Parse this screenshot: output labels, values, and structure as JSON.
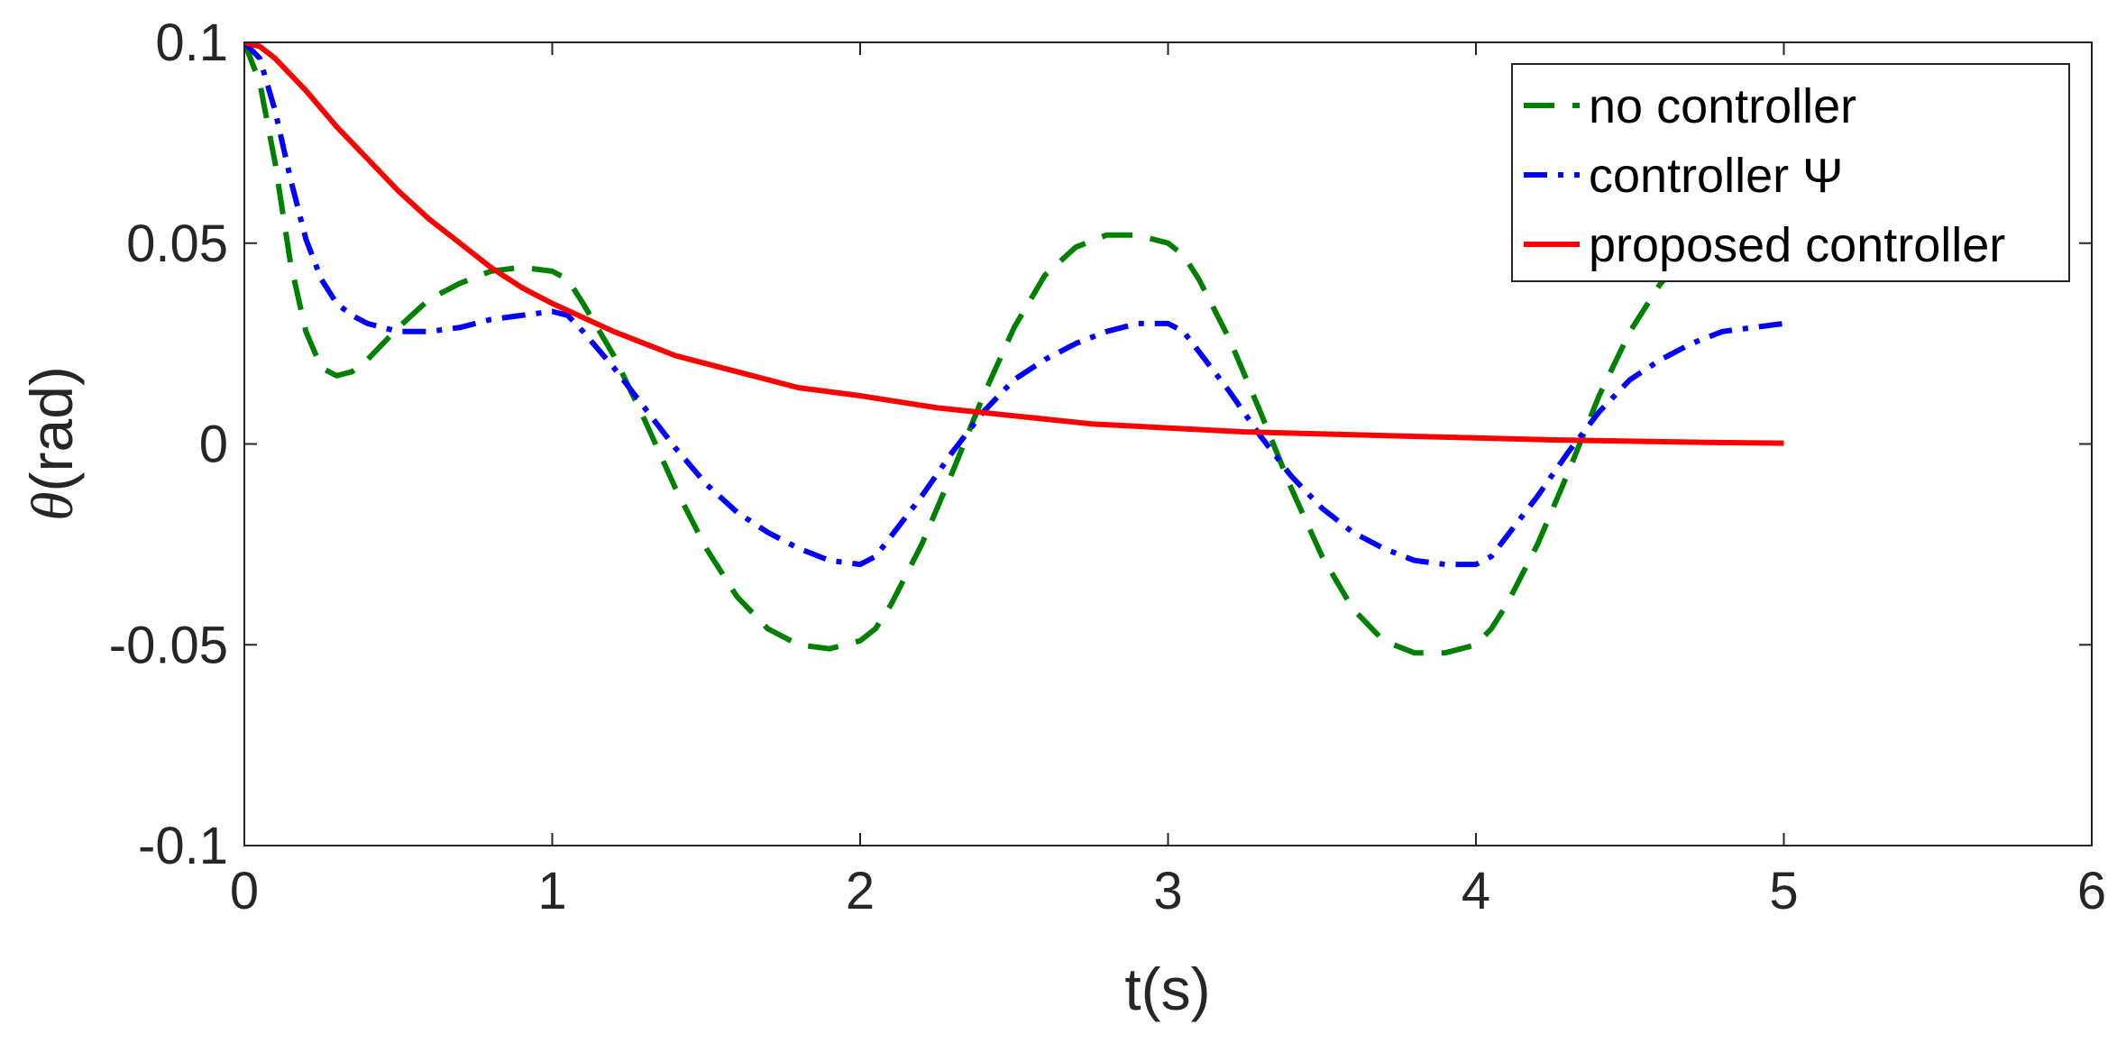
{
  "chart_data": {
    "type": "line",
    "title": "",
    "xlabel": "t(s)",
    "ylabel": {
      "symbol": "θ",
      "unit": "(rad)"
    },
    "xlim": [
      0,
      6
    ],
    "ylim": [
      -0.1,
      0.1
    ],
    "xticks": [
      "0",
      "1",
      "2",
      "3",
      "4",
      "5",
      "6"
    ],
    "yticks": [
      "-0.1",
      "-0.05",
      "0",
      "0.05",
      "0.1"
    ],
    "xtick_values": [
      0,
      1,
      2,
      3,
      4,
      5,
      6
    ],
    "ytick_values": [
      -0.1,
      -0.05,
      0,
      0.05,
      0.1
    ],
    "grid": false,
    "legend_position": "top-right",
    "series": [
      {
        "name": "no controller",
        "color": "#008000",
        "style": "dashed",
        "x": [
          0,
          0.05,
          0.1,
          0.15,
          0.2,
          0.25,
          0.3,
          0.35,
          0.4,
          0.5,
          0.6,
          0.7,
          0.8,
          0.9,
          1.0,
          1.05,
          1.1,
          1.2,
          1.3,
          1.4,
          1.5,
          1.6,
          1.7,
          1.8,
          1.9,
          2.0,
          2.05,
          2.1,
          2.2,
          2.3,
          2.4,
          2.5,
          2.6,
          2.7,
          2.8,
          2.9,
          3.0,
          3.05,
          3.1,
          3.2,
          3.3,
          3.4,
          3.5,
          3.6,
          3.7,
          3.8,
          3.9,
          4.0,
          4.05,
          4.1,
          4.2,
          4.3,
          4.4,
          4.5,
          4.6,
          4.65
        ],
        "y": [
          0.1,
          0.09,
          0.07,
          0.045,
          0.028,
          0.019,
          0.017,
          0.018,
          0.021,
          0.029,
          0.036,
          0.04,
          0.043,
          0.044,
          0.043,
          0.041,
          0.035,
          0.022,
          0.006,
          -0.011,
          -0.026,
          -0.038,
          -0.046,
          -0.05,
          -0.051,
          -0.049,
          -0.046,
          -0.04,
          -0.025,
          -0.007,
          0.012,
          0.029,
          0.042,
          0.049,
          0.052,
          0.052,
          0.05,
          0.047,
          0.041,
          0.026,
          0.008,
          -0.011,
          -0.028,
          -0.041,
          -0.049,
          -0.052,
          -0.052,
          -0.05,
          -0.046,
          -0.04,
          -0.025,
          -0.007,
          0.012,
          0.028,
          0.04,
          0.044
        ]
      },
      {
        "name": "controller Ψ",
        "color": "#0000ff",
        "style": "dashdot",
        "x": [
          0,
          0.05,
          0.1,
          0.15,
          0.2,
          0.25,
          0.3,
          0.35,
          0.4,
          0.5,
          0.6,
          0.7,
          0.8,
          0.9,
          1.0,
          1.05,
          1.1,
          1.2,
          1.3,
          1.4,
          1.5,
          1.6,
          1.7,
          1.8,
          1.9,
          2.0,
          2.05,
          2.1,
          2.2,
          2.3,
          2.4,
          2.5,
          2.6,
          2.7,
          2.8,
          2.9,
          3.0,
          3.05,
          3.1,
          3.2,
          3.3,
          3.4,
          3.5,
          3.6,
          3.7,
          3.8,
          3.9,
          4.0,
          4.05,
          4.1,
          4.2,
          4.3,
          4.4,
          4.5,
          4.6,
          4.7,
          4.8,
          4.9,
          5.0
        ],
        "y": [
          0.1,
          0.096,
          0.083,
          0.066,
          0.051,
          0.041,
          0.035,
          0.032,
          0.03,
          0.028,
          0.028,
          0.029,
          0.031,
          0.032,
          0.033,
          0.032,
          0.028,
          0.019,
          0.009,
          -0.001,
          -0.01,
          -0.017,
          -0.022,
          -0.026,
          -0.029,
          -0.03,
          -0.028,
          -0.023,
          -0.013,
          -0.002,
          0.008,
          0.016,
          0.021,
          0.025,
          0.028,
          0.03,
          0.03,
          0.028,
          0.023,
          0.013,
          0.002,
          -0.008,
          -0.016,
          -0.022,
          -0.026,
          -0.029,
          -0.03,
          -0.03,
          -0.028,
          -0.023,
          -0.013,
          -0.002,
          0.008,
          0.016,
          0.021,
          0.025,
          0.028,
          0.029,
          0.03
        ]
      },
      {
        "name": "proposed controller",
        "color": "#ff0000",
        "style": "solid",
        "x": [
          0,
          0.05,
          0.1,
          0.2,
          0.3,
          0.4,
          0.5,
          0.6,
          0.7,
          0.8,
          0.9,
          1.0,
          1.2,
          1.4,
          1.6,
          1.8,
          2.0,
          2.25,
          2.5,
          2.75,
          3.0,
          3.25,
          3.5,
          3.75,
          4.0,
          4.25,
          4.5,
          4.75,
          5.0
        ],
        "y": [
          0.1,
          0.099,
          0.096,
          0.088,
          0.079,
          0.071,
          0.063,
          0.056,
          0.05,
          0.044,
          0.039,
          0.035,
          0.028,
          0.022,
          0.018,
          0.014,
          0.012,
          0.009,
          0.007,
          0.005,
          0.004,
          0.003,
          0.0025,
          0.002,
          0.0015,
          0.001,
          0.0007,
          0.0004,
          0.0002
        ]
      }
    ]
  }
}
